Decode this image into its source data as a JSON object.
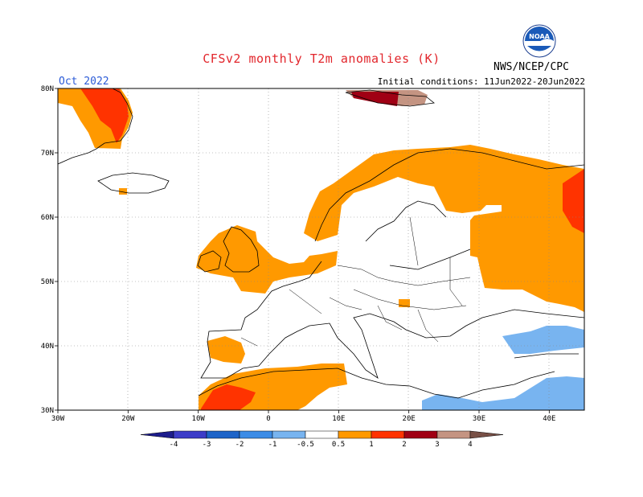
{
  "title": "CFSv2 monthly T2m anomalies (K)",
  "agency": "NWS/NCEP/CPC",
  "logo_text": "NOAA",
  "month": "Oct 2022",
  "initial_conditions": "Initial conditions: 11Jun2022-20Jun2022",
  "lon_ticks": [
    "30W",
    "20W",
    "10W",
    "0",
    "10E",
    "20E",
    "30E",
    "40E"
  ],
  "lat_ticks": [
    "30N",
    "40N",
    "50N",
    "60N",
    "70N",
    "80N"
  ],
  "colorbar": {
    "labels": [
      "-4",
      "-3",
      "-2",
      "-1",
      "-0.5",
      "0.5",
      "1",
      "2",
      "3",
      "4"
    ],
    "colors": [
      "#1c1c8c",
      "#3c3cc8",
      "#1e64c8",
      "#3c8ce6",
      "#78b4f0",
      "#ffffff",
      "#ff9900",
      "#ff3300",
      "#a00014",
      "#c49482",
      "#785046"
    ]
  },
  "chart_data": {
    "type": "heatmap",
    "variable": "T2m anomalies (K)",
    "domain": {
      "lon": [
        -30,
        45
      ],
      "lat": [
        30,
        80
      ]
    },
    "anomaly_regions": [
      {
        "region": "Greenland east coast",
        "category": "1 to 2, locally 2 to 3"
      },
      {
        "region": "Svalbard",
        "category": "2 to 4"
      },
      {
        "region": "Iceland east",
        "category": "0.5 to 1"
      },
      {
        "region": "Scandinavia & northwest Russia",
        "category": "0.5 to 1"
      },
      {
        "region": "British Isles & Low Countries",
        "category": "0.5 to 1"
      },
      {
        "region": "Western European Russia",
        "category": "0.5 to 1, locally 1 to 2"
      },
      {
        "region": "Iberia & North Africa",
        "category": "0.5 to 1, locally 1 to 2"
      },
      {
        "region": "Eastern Mediterranean & Middle East",
        "category": "-1 to -0.5"
      }
    ]
  }
}
